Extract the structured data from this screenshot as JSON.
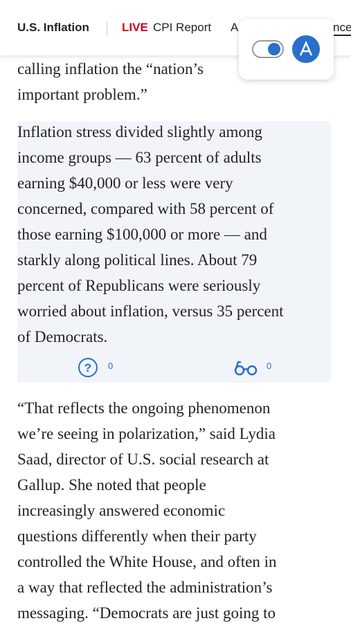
{
  "header": {
    "section": "U.S. Inflation",
    "live": "LIVE",
    "live_link": "CPI Report",
    "next_link": "A",
    "edge_link": "nce"
  },
  "article": {
    "paragraph_1": [
      "calling inflation the “nation’s",
      "important problem.”"
    ],
    "highlight": {
      "lines": [
        "Inflation stress divided slightly among",
        "income groups — 63 percent of adults",
        "earning $40,000 or less were very",
        "concerned, compared with 58 percent of",
        "those earning $100,000 or more — and",
        "starkly along political lines. About 79",
        "percent of Republicans were seriously",
        "worried about inflation, versus 35 percent",
        "of Democrats."
      ],
      "question_count": "0",
      "reader_count": "0"
    },
    "paragraph_3": [
      "“That reflects the ongoing phenomenon",
      "we’re seeing in polarization,” said Lydia",
      "Saad, director of U.S. social research at",
      "Gallup. She noted that people",
      "increasingly answered economic",
      "questions differently when their party",
      "controlled the White House, and often in",
      "a way that reflected the administration’s",
      "messaging. “Democrats are just going to"
    ]
  }
}
